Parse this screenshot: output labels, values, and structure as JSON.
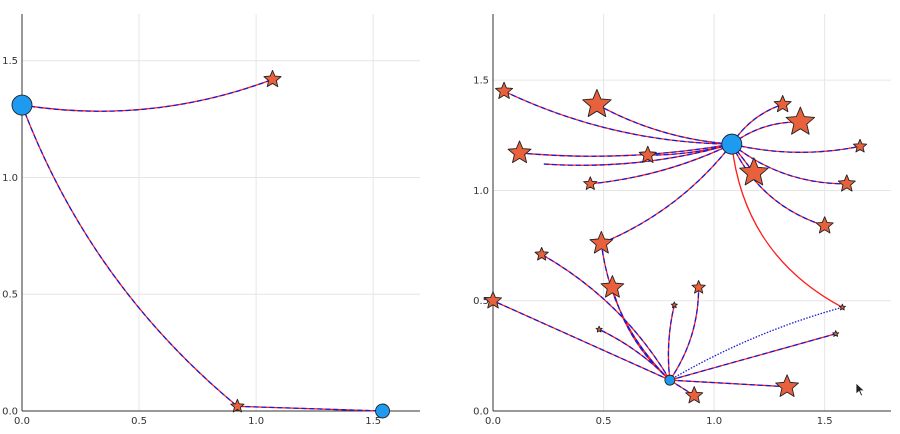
{
  "chart_data": [
    {
      "type": "line",
      "title": "",
      "xlabel": "",
      "ylabel": "",
      "xlim": [
        0,
        1.7
      ],
      "ylim": [
        0,
        1.7
      ],
      "xticks": [
        0,
        0.5,
        1,
        1.5
      ],
      "yticks": [
        0,
        0.5,
        1,
        1.5
      ],
      "xtick_labels": [
        "0.0",
        "0.5",
        "1.0",
        "1.5"
      ],
      "ytick_labels": [
        "0.0",
        "0.5",
        "1.0",
        "1.5"
      ],
      "grid": true,
      "legend": "none",
      "colors": {
        "red": "#ff1a1a",
        "blue": "#1a1ad9",
        "star": "#e8613c",
        "circle": "#1e9bf0",
        "grid": "#e6e6e6",
        "axis": "#333333"
      },
      "circles": [
        {
          "x": 0.0,
          "y": 1.31,
          "size": "large"
        },
        {
          "x": 1.54,
          "y": 0.0,
          "size": "medium"
        }
      ],
      "stars": [
        {
          "x": 1.07,
          "y": 1.42,
          "size": "medium"
        },
        {
          "x": 0.92,
          "y": 0.02,
          "size": "small"
        }
      ],
      "trajectories": [
        {
          "from": [
            0.0,
            1.31
          ],
          "to": [
            1.07,
            1.42
          ],
          "bend": -0.06
        },
        {
          "from": [
            0.0,
            1.31
          ],
          "to": [
            0.92,
            0.02
          ],
          "bend": -0.06
        },
        {
          "from": [
            0.92,
            0.02
          ],
          "to": [
            1.54,
            0.0
          ],
          "bend": 0.0
        }
      ]
    },
    {
      "type": "line",
      "title": "",
      "xlabel": "",
      "ylabel": "",
      "xlim": [
        0,
        1.8
      ],
      "ylim": [
        0,
        1.8
      ],
      "xticks": [
        0,
        0.5,
        1,
        1.5
      ],
      "yticks": [
        0,
        0.5,
        1,
        1.5
      ],
      "xtick_labels": [
        "0.0",
        "0.5",
        "1.0",
        "1.5"
      ],
      "ytick_labels": [
        "0.0",
        "0.5",
        "1.0",
        "1.5"
      ],
      "grid": true,
      "legend": "none",
      "colors": {
        "red": "#ff1a1a",
        "blue": "#1a1ad9",
        "star": "#e8613c",
        "circle": "#1e9bf0",
        "grid": "#e6e6e6",
        "axis": "#333333"
      },
      "circles": [
        {
          "x": 1.08,
          "y": 1.21,
          "size": "large"
        },
        {
          "x": 0.8,
          "y": 0.14,
          "size": "small"
        }
      ],
      "stars": [
        {
          "x": 0.05,
          "y": 1.45,
          "size": "medium"
        },
        {
          "x": 0.47,
          "y": 1.39,
          "size": "xlarge"
        },
        {
          "x": 0.12,
          "y": 1.17,
          "size": "large"
        },
        {
          "x": 0.7,
          "y": 1.16,
          "size": "medium"
        },
        {
          "x": 0.44,
          "y": 1.03,
          "size": "small"
        },
        {
          "x": 1.31,
          "y": 1.39,
          "size": "medium"
        },
        {
          "x": 1.39,
          "y": 1.31,
          "size": "xlarge"
        },
        {
          "x": 1.66,
          "y": 1.2,
          "size": "small"
        },
        {
          "x": 1.18,
          "y": 1.08,
          "size": "xlarge"
        },
        {
          "x": 1.6,
          "y": 1.03,
          "size": "medium"
        },
        {
          "x": 1.5,
          "y": 0.84,
          "size": "medium"
        },
        {
          "x": 0.49,
          "y": 0.76,
          "size": "large"
        },
        {
          "x": 0.22,
          "y": 0.71,
          "size": "small"
        },
        {
          "x": 0.54,
          "y": 0.56,
          "size": "large"
        },
        {
          "x": 0.93,
          "y": 0.56,
          "size": "small"
        },
        {
          "x": 0.82,
          "y": 0.48,
          "size": "tiny"
        },
        {
          "x": 0.0,
          "y": 0.5,
          "size": "medium"
        },
        {
          "x": 0.48,
          "y": 0.37,
          "size": "tiny"
        },
        {
          "x": 1.58,
          "y": 0.47,
          "size": "tiny"
        },
        {
          "x": 1.55,
          "y": 0.35,
          "size": "tiny"
        },
        {
          "x": 1.33,
          "y": 0.11,
          "size": "large"
        },
        {
          "x": 0.91,
          "y": 0.07,
          "size": "medium"
        }
      ],
      "trajectories": [
        {
          "from": [
            0.05,
            1.45
          ],
          "to": [
            1.08,
            1.21
          ],
          "bend": -0.05
        },
        {
          "from": [
            0.47,
            1.39
          ],
          "to": [
            1.08,
            1.21
          ],
          "bend": -0.05
        },
        {
          "from": [
            0.12,
            1.17
          ],
          "to": [
            1.08,
            1.21
          ],
          "bend": -0.03
        },
        {
          "from": [
            0.23,
            1.12
          ],
          "to": [
            1.08,
            1.21
          ],
          "bend": -0.04
        },
        {
          "from": [
            0.44,
            1.03
          ],
          "to": [
            1.08,
            1.21
          ],
          "bend": -0.04
        },
        {
          "from": [
            0.7,
            1.16
          ],
          "to": [
            1.08,
            1.21
          ],
          "bend": -0.03
        },
        {
          "from": [
            1.08,
            1.21
          ],
          "to": [
            1.31,
            1.39
          ],
          "bend": 0.08
        },
        {
          "from": [
            1.08,
            1.21
          ],
          "to": [
            1.39,
            1.31
          ],
          "bend": 0.08
        },
        {
          "from": [
            1.08,
            1.21
          ],
          "to": [
            1.66,
            1.2
          ],
          "bend": -0.05
        },
        {
          "from": [
            1.08,
            1.21
          ],
          "to": [
            1.6,
            1.03
          ],
          "bend": -0.08
        },
        {
          "from": [
            1.08,
            1.21
          ],
          "to": [
            1.5,
            0.84
          ],
          "bend": -0.1
        },
        {
          "from": [
            1.08,
            1.21
          ],
          "to": [
            1.18,
            1.08
          ],
          "bend": 0.0
        },
        {
          "from": [
            1.08,
            1.21
          ],
          "to": [
            0.49,
            0.76
          ],
          "bend": 0.06
        },
        {
          "from": [
            1.08,
            1.21
          ],
          "to": [
            1.58,
            0.47
          ],
          "bend": -0.12,
          "color": "red"
        },
        {
          "from": [
            0.8,
            0.14
          ],
          "to": [
            0.49,
            0.76
          ],
          "bend": 0.08
        },
        {
          "from": [
            0.8,
            0.14
          ],
          "to": [
            0.22,
            0.71
          ],
          "bend": -0.06
        },
        {
          "from": [
            0.8,
            0.14
          ],
          "to": [
            0.54,
            0.56
          ],
          "bend": 0.07
        },
        {
          "from": [
            0.8,
            0.14
          ],
          "to": [
            0.93,
            0.56
          ],
          "bend": -0.07
        },
        {
          "from": [
            0.8,
            0.14
          ],
          "to": [
            0.82,
            0.48
          ],
          "bend": 0.04
        },
        {
          "from": [
            0.8,
            0.14
          ],
          "to": [
            0.0,
            0.5
          ],
          "bend": 0.0
        },
        {
          "from": [
            0.8,
            0.14
          ],
          "to": [
            0.48,
            0.37
          ],
          "bend": -0.04
        },
        {
          "from": [
            0.8,
            0.14
          ],
          "to": [
            1.58,
            0.47
          ],
          "bend": 0.03,
          "color": "blue"
        },
        {
          "from": [
            0.8,
            0.14
          ],
          "to": [
            1.55,
            0.35
          ],
          "bend": 0.0
        },
        {
          "from": [
            0.8,
            0.14
          ],
          "to": [
            1.33,
            0.11
          ],
          "bend": 0.0
        },
        {
          "from": [
            0.8,
            0.14
          ],
          "to": [
            0.91,
            0.07
          ],
          "bend": 0.0
        }
      ]
    }
  ]
}
